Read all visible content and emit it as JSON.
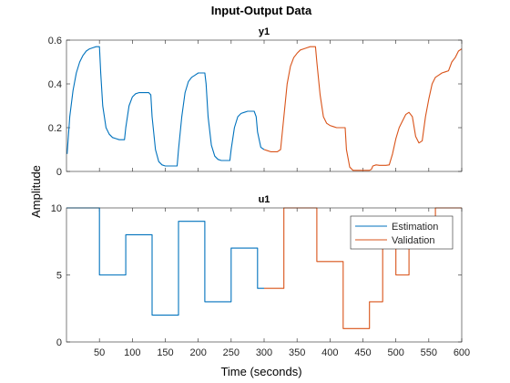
{
  "chart_data": [
    {
      "type": "line",
      "title": "y1",
      "xlim": [
        0,
        600
      ],
      "ylim": [
        0,
        0.6
      ],
      "yticks": [
        0,
        0.2,
        0.4,
        0.6
      ],
      "ytick_labels": [
        "0",
        "0.2",
        "0.4",
        "0.6"
      ],
      "grid": false,
      "series": [
        {
          "name": "Estimation",
          "color": "#0072BD",
          "x": [
            1,
            5,
            10,
            15,
            20,
            25,
            30,
            35,
            40,
            45,
            50,
            52,
            55,
            60,
            65,
            70,
            75,
            80,
            85,
            88,
            90,
            95,
            100,
            105,
            110,
            115,
            120,
            125,
            128,
            130,
            135,
            140,
            145,
            150,
            155,
            160,
            165,
            168,
            170,
            175,
            180,
            185,
            190,
            195,
            200,
            205,
            210,
            212,
            215,
            220,
            225,
            230,
            235,
            240,
            245,
            248,
            250,
            255,
            260,
            265,
            270,
            275,
            280,
            285,
            288,
            290,
            295,
            300
          ],
          "y": [
            0.08,
            0.25,
            0.37,
            0.45,
            0.5,
            0.53,
            0.55,
            0.56,
            0.565,
            0.57,
            0.57,
            0.45,
            0.3,
            0.2,
            0.17,
            0.155,
            0.15,
            0.145,
            0.145,
            0.145,
            0.2,
            0.3,
            0.34,
            0.355,
            0.36,
            0.36,
            0.36,
            0.36,
            0.35,
            0.25,
            0.1,
            0.045,
            0.03,
            0.025,
            0.025,
            0.025,
            0.025,
            0.025,
            0.1,
            0.25,
            0.36,
            0.41,
            0.43,
            0.44,
            0.45,
            0.45,
            0.45,
            0.4,
            0.25,
            0.12,
            0.07,
            0.055,
            0.05,
            0.05,
            0.05,
            0.05,
            0.1,
            0.2,
            0.25,
            0.265,
            0.27,
            0.275,
            0.275,
            0.275,
            0.25,
            0.18,
            0.11,
            0.1
          ]
        },
        {
          "name": "Validation",
          "color": "#D95319",
          "x": [
            300,
            305,
            310,
            315,
            320,
            325,
            330,
            335,
            340,
            345,
            350,
            355,
            360,
            365,
            370,
            375,
            378,
            380,
            385,
            390,
            395,
            400,
            405,
            410,
            415,
            420,
            423,
            425,
            430,
            435,
            440,
            445,
            450,
            455,
            460,
            463,
            465,
            470,
            475,
            480,
            485,
            490,
            495,
            500,
            505,
            510,
            515,
            520,
            525,
            530,
            535,
            540,
            545,
            550,
            555,
            560,
            565,
            570,
            575,
            580,
            585,
            590,
            595,
            600
          ],
          "y": [
            0.1,
            0.095,
            0.09,
            0.09,
            0.09,
            0.1,
            0.25,
            0.4,
            0.48,
            0.52,
            0.54,
            0.555,
            0.56,
            0.565,
            0.57,
            0.57,
            0.57,
            0.5,
            0.35,
            0.25,
            0.22,
            0.21,
            0.205,
            0.2,
            0.2,
            0.2,
            0.2,
            0.1,
            0.02,
            0.005,
            0.005,
            0.005,
            0.005,
            0.005,
            0.005,
            0.01,
            0.025,
            0.03,
            0.028,
            0.028,
            0.028,
            0.03,
            0.08,
            0.15,
            0.2,
            0.23,
            0.26,
            0.27,
            0.25,
            0.16,
            0.13,
            0.14,
            0.25,
            0.33,
            0.4,
            0.43,
            0.44,
            0.45,
            0.455,
            0.46,
            0.5,
            0.52,
            0.55,
            0.56
          ]
        }
      ]
    },
    {
      "type": "line",
      "title": "u1",
      "xlim": [
        0,
        600
      ],
      "ylim": [
        0,
        10
      ],
      "yticks": [
        0,
        5,
        10
      ],
      "ytick_labels": [
        "0",
        "5",
        "10"
      ],
      "grid": false,
      "series": [
        {
          "name": "Estimation",
          "color": "#0072BD",
          "step": true,
          "x": [
            0,
            50,
            50,
            90,
            90,
            130,
            130,
            170,
            170,
            210,
            210,
            250,
            250,
            290,
            290,
            300
          ],
          "y": [
            10,
            10,
            5,
            5,
            8,
            8,
            2,
            2,
            9,
            9,
            3,
            3,
            7,
            7,
            4,
            4
          ]
        },
        {
          "name": "Validation",
          "color": "#D95319",
          "step": true,
          "x": [
            300,
            330,
            330,
            380,
            380,
            420,
            420,
            460,
            460,
            480,
            480,
            500,
            500,
            520,
            520,
            560,
            560,
            600
          ],
          "y": [
            4,
            4,
            10,
            10,
            6,
            6,
            1,
            1,
            3,
            3,
            8,
            8,
            5,
            5,
            9,
            9,
            10,
            10
          ]
        }
      ],
      "legend": {
        "placement": "top-right",
        "entries": [
          {
            "label": "Estimation",
            "color": "#0072BD"
          },
          {
            "label": "Validation",
            "color": "#D95319"
          }
        ]
      }
    }
  ],
  "figure": {
    "title": "Input-Output Data",
    "xlabel": "Time (seconds)",
    "ylabel": "Amplitude",
    "xticks": [
      50,
      100,
      150,
      200,
      250,
      300,
      350,
      400,
      450,
      500,
      550,
      600
    ],
    "xtick_labels": [
      "50",
      "100",
      "150",
      "200",
      "250",
      "300",
      "350",
      "400",
      "450",
      "500",
      "550",
      "600"
    ]
  }
}
